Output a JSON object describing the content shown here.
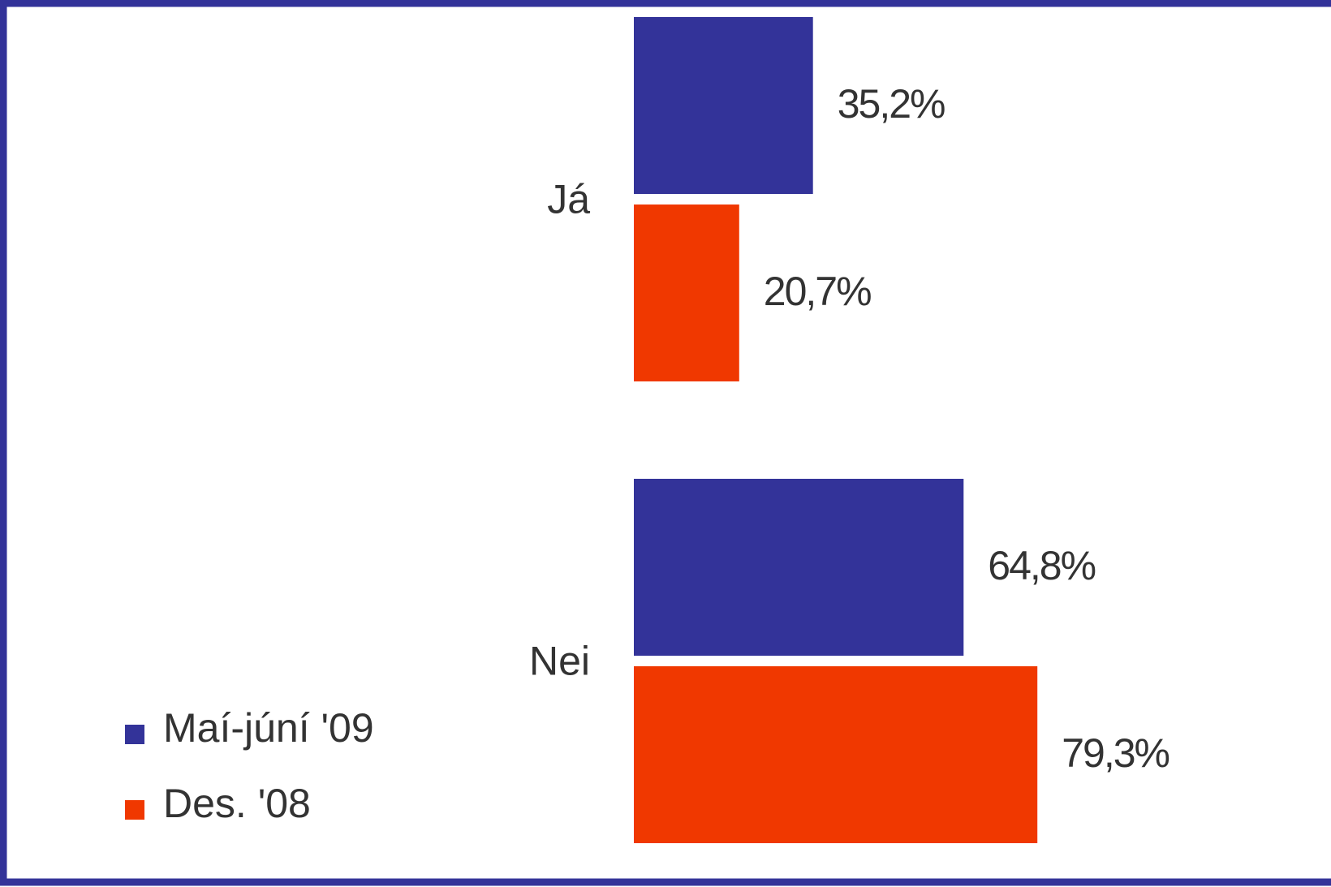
{
  "chart_data": {
    "type": "barh",
    "categories": [
      "Já",
      "Nei"
    ],
    "series": [
      {
        "name": "Maí-júní '09",
        "color": "#333399",
        "values": [
          35.2,
          64.8
        ],
        "value_labels": [
          "35,2%",
          "64,8%"
        ]
      },
      {
        "name": "Des. '08",
        "color": "#f03800",
        "values": [
          20.7,
          79.3
        ],
        "value_labels": [
          "20,7%",
          "79,3%"
        ]
      }
    ],
    "legend": "lower-left"
  }
}
